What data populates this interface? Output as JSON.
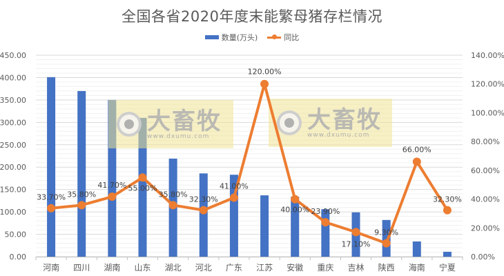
{
  "title": "全国各省2020年度末能繁母猪存栏情况",
  "legend": {
    "bar_label": "数量(万头)",
    "line_label": "同比"
  },
  "watermark": {
    "brand": "大畜牧",
    "url": "www.dxumu.com"
  },
  "colors": {
    "bar": "#4472C4",
    "line": "#ED7D31",
    "grid_major": "#D9D9D9",
    "grid_minor": "#F0F0F0",
    "text": "#595959"
  },
  "chart_data": {
    "type": "bar+line",
    "title": "全国各省2020年度末能繁母猪存栏情况",
    "categories": [
      "河南",
      "四川",
      "湖南",
      "山东",
      "湖北",
      "河北",
      "广东",
      "江苏",
      "安徽",
      "重庆",
      "吉林",
      "陕西",
      "海南",
      "宁夏"
    ],
    "series": [
      {
        "name": "数量(万头)",
        "type": "bar",
        "axis": "left",
        "values": [
          401,
          370,
          350,
          310,
          219,
          186,
          183,
          137,
          134,
          106,
          99,
          82,
          34,
          11
        ]
      },
      {
        "name": "同比",
        "type": "line",
        "axis": "right",
        "values": [
          33.7,
          35.8,
          41.7,
          55.0,
          35.8,
          32.3,
          41.0,
          120.0,
          40.0,
          23.9,
          17.1,
          9.3,
          66.0,
          32.3
        ],
        "labels": [
          "33.70%",
          "35.80%",
          "41.70%",
          "55.00%",
          "35.80%",
          "32.30%",
          "41.00%",
          "120.00%",
          "40.00%",
          "23.90%",
          "17.10%",
          "9.30%",
          "66.00%",
          "32.30%"
        ]
      }
    ],
    "y_left": {
      "ylim": [
        0,
        450
      ],
      "ticks": [
        "0.00",
        "50.00",
        "100.00",
        "150.00",
        "200.00",
        "250.00",
        "300.00",
        "350.00",
        "400.00",
        "450.00"
      ]
    },
    "y_right": {
      "ylim": [
        0,
        140
      ],
      "ticks": [
        "0.00%",
        "20.00%",
        "40.00%",
        "60.00%",
        "80.00%",
        "100.00%",
        "120.00%",
        "140.00%"
      ]
    },
    "xlabel": "",
    "ylabel": "",
    "grid": true,
    "legend_position": "top"
  }
}
